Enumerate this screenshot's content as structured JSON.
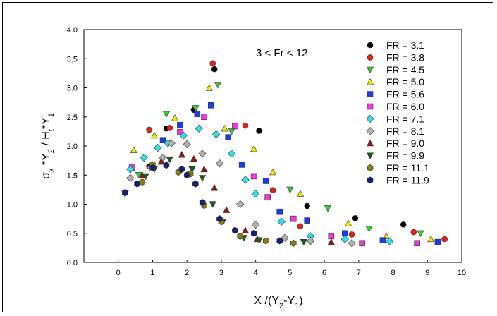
{
  "chart_data": {
    "type": "scatter",
    "title": "",
    "annotation": "3 < Fr < 12",
    "xlabel": "X /(Y2-Y1)",
    "ylabel": "σx *Y2 / Ht*Y1",
    "xlim": [
      -1,
      10
    ],
    "ylim": [
      0,
      4
    ],
    "xticks": [
      "0",
      "1",
      "2",
      "3",
      "4",
      "5",
      "6",
      "7",
      "8",
      "9",
      "10"
    ],
    "yticks": [
      "0.0",
      "0.5",
      "1.0",
      "1.5",
      "2.0",
      "2.5",
      "3.0",
      "3.5",
      "4.0"
    ],
    "grid": false,
    "legend_position": "top-right",
    "series": [
      {
        "name": "FR = 3.1",
        "marker": "circle",
        "color": "#000000",
        "points": [
          [
            0.2,
            1.2
          ],
          [
            0.9,
            1.65
          ],
          [
            1.4,
            2.3
          ],
          [
            2.2,
            2.62
          ],
          [
            2.8,
            3.32
          ],
          [
            4.1,
            2.26
          ],
          [
            5.5,
            0.97
          ],
          [
            6.9,
            0.76
          ],
          [
            8.3,
            0.65
          ]
        ]
      },
      {
        "name": "FR = 3.8",
        "marker": "circle",
        "color": "#e0201c",
        "points": [
          [
            0.2,
            1.2
          ],
          [
            0.9,
            2.28
          ],
          [
            1.5,
            2.31
          ],
          [
            2.75,
            3.42
          ],
          [
            3.7,
            2.35
          ],
          [
            4.5,
            1.24
          ],
          [
            5.3,
            0.62
          ],
          [
            6.8,
            0.48
          ],
          [
            8.6,
            0.52
          ],
          [
            9.5,
            0.4
          ]
        ]
      },
      {
        "name": "FR = 4.5",
        "marker": "tri-down",
        "color": "#33cc33",
        "points": [
          [
            0.2,
            1.18
          ],
          [
            0.6,
            1.5
          ],
          [
            1.4,
            2.55
          ],
          [
            2.25,
            2.65
          ],
          [
            2.9,
            3.05
          ],
          [
            3.3,
            2.25
          ],
          [
            5.0,
            1.25
          ],
          [
            6.1,
            0.93
          ],
          [
            7.3,
            0.58
          ],
          [
            8.8,
            0.5
          ]
        ]
      },
      {
        "name": "FR = 5.0",
        "marker": "tri-up",
        "color": "#f0e800",
        "points": [
          [
            0.45,
            1.93
          ],
          [
            1.05,
            2.18
          ],
          [
            1.65,
            2.48
          ],
          [
            2.65,
            3.0
          ],
          [
            3.1,
            2.3
          ],
          [
            3.95,
            1.95
          ],
          [
            4.5,
            1.55
          ],
          [
            5.3,
            1.18
          ],
          [
            6.7,
            0.67
          ],
          [
            7.8,
            0.45
          ],
          [
            9.1,
            0.4
          ]
        ]
      },
      {
        "name": "FR = 5.6",
        "marker": "square",
        "color": "#1a3de8",
        "points": [
          [
            0.4,
            1.62
          ],
          [
            1.3,
            2.1
          ],
          [
            1.8,
            2.36
          ],
          [
            2.3,
            2.55
          ],
          [
            2.7,
            2.7
          ],
          [
            3.2,
            2.15
          ],
          [
            3.6,
            1.68
          ],
          [
            4.3,
            1.4
          ],
          [
            4.7,
            0.87
          ],
          [
            5.5,
            0.72
          ],
          [
            6.6,
            0.5
          ],
          [
            7.7,
            0.38
          ],
          [
            9.3,
            0.35
          ]
        ]
      },
      {
        "name": "FR = 6.0",
        "marker": "square",
        "color": "#ee38d8",
        "points": [
          [
            0.4,
            1.63
          ],
          [
            1.8,
            2.24
          ],
          [
            2.5,
            2.5
          ],
          [
            3.4,
            2.34
          ],
          [
            3.95,
            1.48
          ],
          [
            4.35,
            1.12
          ],
          [
            5.1,
            0.75
          ],
          [
            6.2,
            0.45
          ],
          [
            7.1,
            0.33
          ],
          [
            8.7,
            0.33
          ]
        ]
      },
      {
        "name": "FR = 7.1",
        "marker": "diamond",
        "color": "#2ee0e8",
        "points": [
          [
            0.35,
            1.6
          ],
          [
            0.75,
            1.8
          ],
          [
            1.15,
            1.97
          ],
          [
            1.45,
            2.05
          ],
          [
            1.9,
            2.18
          ],
          [
            2.35,
            2.3
          ],
          [
            2.85,
            2.2
          ],
          [
            3.3,
            1.87
          ],
          [
            3.7,
            1.42
          ],
          [
            4.0,
            1.18
          ],
          [
            4.75,
            0.7
          ],
          [
            5.6,
            0.45
          ],
          [
            6.6,
            0.4
          ],
          [
            7.9,
            0.36
          ]
        ]
      },
      {
        "name": "FR = 8.1",
        "marker": "diamond",
        "color": "#b0b0b0",
        "points": [
          [
            0.35,
            1.45
          ],
          [
            0.95,
            1.63
          ],
          [
            1.3,
            1.8
          ],
          [
            1.55,
            2.05
          ],
          [
            2.0,
            2.03
          ],
          [
            2.45,
            1.87
          ],
          [
            2.95,
            1.7
          ],
          [
            3.55,
            1.0
          ],
          [
            4.0,
            0.65
          ],
          [
            4.85,
            0.42
          ],
          [
            5.6,
            0.37
          ],
          [
            6.8,
            0.33
          ]
        ]
      },
      {
        "name": "FR = 9.0",
        "marker": "tri-up",
        "color": "#8b1a1a",
        "points": [
          [
            0.2,
            1.2
          ],
          [
            0.7,
            1.5
          ],
          [
            1.25,
            1.73
          ],
          [
            1.85,
            1.85
          ],
          [
            2.2,
            1.78
          ],
          [
            2.5,
            1.6
          ],
          [
            2.8,
            1.28
          ],
          [
            3.15,
            0.9
          ],
          [
            3.7,
            0.55
          ],
          [
            4.05,
            0.4
          ],
          [
            6.2,
            0.35
          ]
        ]
      },
      {
        "name": "FR = 9.9",
        "marker": "tri-down",
        "color": "#1a5e1a",
        "points": [
          [
            0.2,
            1.18
          ],
          [
            0.8,
            1.48
          ],
          [
            1.05,
            1.6
          ],
          [
            1.5,
            1.77
          ],
          [
            2.15,
            1.6
          ],
          [
            2.45,
            1.45
          ],
          [
            2.75,
            1.0
          ],
          [
            3.05,
            0.7
          ],
          [
            3.65,
            0.42
          ],
          [
            4.1,
            0.38
          ],
          [
            5.4,
            0.35
          ]
        ]
      },
      {
        "name": "FR = 11.1",
        "marker": "hexagon",
        "color": "#8a7a10",
        "points": [
          [
            0.2,
            1.2
          ],
          [
            0.7,
            1.38
          ],
          [
            1.0,
            1.68
          ],
          [
            1.75,
            1.55
          ],
          [
            2.1,
            1.52
          ],
          [
            2.5,
            0.98
          ],
          [
            3.0,
            0.7
          ],
          [
            3.55,
            0.45
          ],
          [
            4.3,
            0.37
          ],
          [
            5.1,
            0.33
          ]
        ]
      },
      {
        "name": "FR = 11.9",
        "marker": "hexagon",
        "color": "#16206e",
        "points": [
          [
            0.2,
            1.2
          ],
          [
            0.55,
            1.35
          ],
          [
            1.0,
            1.63
          ],
          [
            1.4,
            1.67
          ],
          [
            1.85,
            1.6
          ],
          [
            2.0,
            1.5
          ],
          [
            2.25,
            1.35
          ],
          [
            2.45,
            1.03
          ],
          [
            2.95,
            0.75
          ],
          [
            3.4,
            0.55
          ],
          [
            3.95,
            0.5
          ],
          [
            4.7,
            0.37
          ]
        ]
      }
    ]
  }
}
